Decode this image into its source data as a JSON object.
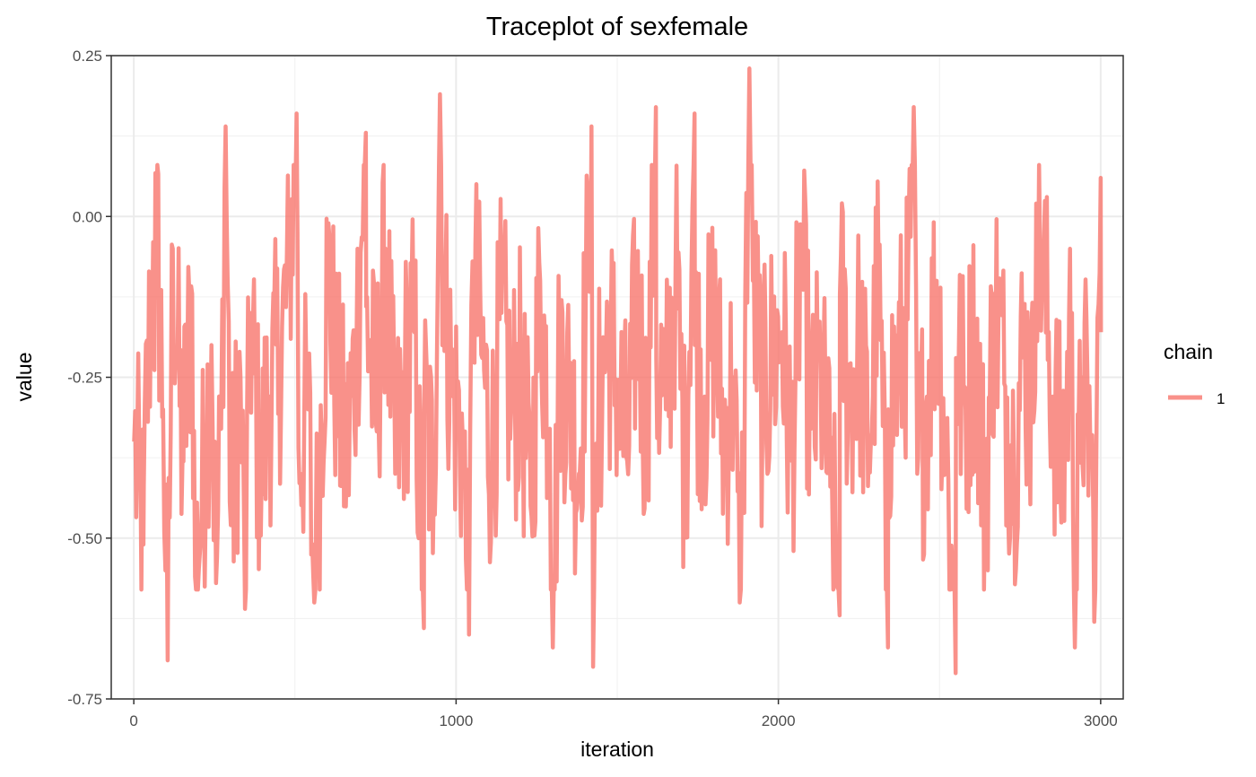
{
  "chart_data": {
    "type": "line",
    "title": "Traceplot of  sexfemale",
    "xlabel": "iteration",
    "ylabel": "value",
    "xlim": [
      -70,
      3070
    ],
    "ylim": [
      -0.75,
      0.25
    ],
    "x_ticks": [
      0,
      1000,
      2000,
      3000
    ],
    "x_tick_labels": [
      "0",
      "1000",
      "2000",
      "3000"
    ],
    "y_ticks": [
      -0.75,
      -0.5,
      -0.25,
      0.0,
      0.25
    ],
    "y_tick_labels": [
      "-0.75",
      "-0.50",
      "-0.25",
      "0.00",
      "0.25"
    ],
    "grid": true,
    "legend": {
      "title": "chain",
      "placement": "right",
      "entries": [
        "1"
      ]
    },
    "series_color": "#F8766D",
    "line_opacity": 0.8,
    "series": [
      {
        "name": "1",
        "x_start": 1,
        "x_step": 30,
        "values": [
          -0.35,
          -0.42,
          -0.18,
          -0.3,
          -0.05,
          -0.38,
          -0.12,
          -0.45,
          -0.2,
          -0.33,
          -0.48,
          -0.25,
          -0.15,
          -0.4,
          -0.28,
          -0.22,
          -0.1,
          -0.36,
          -0.3,
          -0.45,
          -0.08,
          -0.27,
          -0.38,
          -0.2,
          -0.14,
          -0.32,
          -0.05,
          -0.4,
          -0.25,
          -0.18,
          -0.3,
          -0.42,
          -0.12,
          -0.28,
          -0.35,
          -0.07,
          -0.22,
          -0.38,
          -0.15,
          -0.3,
          -0.25,
          -0.45,
          -0.1,
          -0.33,
          -0.2,
          -0.28,
          -0.4,
          -0.05,
          -0.32,
          -0.18,
          -0.26,
          -0.38,
          -0.12,
          -0.35,
          -0.22,
          -0.3,
          -0.08,
          -0.42,
          -0.2,
          -0.28,
          -0.15,
          -0.35,
          -0.25,
          -0.4,
          -0.1,
          -0.3,
          -0.22,
          -0.18,
          -0.38,
          -0.05,
          -0.33,
          -0.25,
          -0.42,
          -0.12,
          -0.28,
          -0.2,
          -0.36,
          -0.08,
          -0.3,
          -0.24,
          -0.16,
          -0.4,
          -0.28,
          -0.1,
          -0.35,
          -0.22,
          -0.3,
          -0.18,
          -0.45,
          -0.12,
          -0.26,
          -0.38,
          -0.2,
          -0.32,
          -0.08,
          -0.28,
          -0.4,
          -0.15,
          -0.25,
          -0.35,
          -0.18
        ],
        "spikes": [
          {
            "x": 30,
            "value": -0.51
          },
          {
            "x": 60,
            "value": -0.04
          },
          {
            "x": 70,
            "value": 0.01
          },
          {
            "x": 105,
            "value": -0.69
          },
          {
            "x": 190,
            "value": -0.56
          },
          {
            "x": 255,
            "value": -0.57
          },
          {
            "x": 285,
            "value": 0.14
          },
          {
            "x": 345,
            "value": -0.61
          },
          {
            "x": 505,
            "value": 0.16
          },
          {
            "x": 560,
            "value": -0.6
          },
          {
            "x": 720,
            "value": 0.13
          },
          {
            "x": 900,
            "value": -0.64
          },
          {
            "x": 950,
            "value": 0.19
          },
          {
            "x": 1040,
            "value": -0.65
          },
          {
            "x": 1300,
            "value": -0.67
          },
          {
            "x": 1420,
            "value": 0.14
          },
          {
            "x": 1425,
            "value": -0.7
          },
          {
            "x": 1620,
            "value": 0.17
          },
          {
            "x": 1740,
            "value": 0.16
          },
          {
            "x": 1880,
            "value": -0.6
          },
          {
            "x": 1910,
            "value": 0.23
          },
          {
            "x": 2190,
            "value": -0.62
          },
          {
            "x": 2340,
            "value": -0.67
          },
          {
            "x": 2420,
            "value": 0.17
          },
          {
            "x": 2550,
            "value": -0.71
          },
          {
            "x": 2800,
            "value": 0.02
          },
          {
            "x": 2920,
            "value": -0.67
          },
          {
            "x": 2980,
            "value": -0.63
          },
          {
            "x": 3000,
            "value": 0.06
          }
        ]
      }
    ]
  }
}
